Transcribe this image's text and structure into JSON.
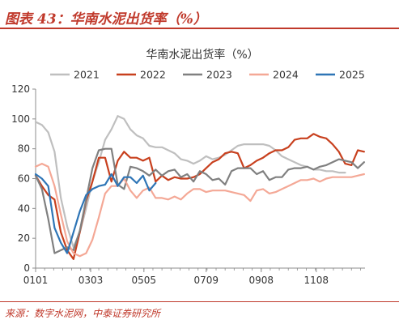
{
  "header": {
    "title": "图表 43：华南水泥出货率（%）",
    "accent_color": "#c0392b"
  },
  "source": {
    "text": "来源：数字水泥网，中泰证券研究所"
  },
  "chart_data": {
    "type": "line",
    "title": "华南水泥出货率（%）",
    "xlabel": "",
    "ylabel": "",
    "ylim": [
      0,
      120
    ],
    "yticks": [
      0,
      20,
      40,
      60,
      80,
      100,
      120
    ],
    "xlim": [
      1,
      366
    ],
    "x_unit": "day of year",
    "x_tick_values": [
      1,
      62,
      121,
      190,
      251,
      312
    ],
    "x_tick_labels": [
      "0101",
      "0303",
      "0505",
      "0709",
      "0908",
      "1108"
    ],
    "grid": false,
    "legend": {
      "position": "top",
      "entries": [
        "2021",
        "2022",
        "2023",
        "2024",
        "2025"
      ]
    },
    "series": [
      {
        "name": "2021",
        "color": "#bfbfbf",
        "x": [
          1,
          8,
          15,
          22,
          29,
          36,
          43,
          50,
          57,
          64,
          71,
          78,
          85,
          92,
          99,
          106,
          113,
          120,
          127,
          134,
          141,
          148,
          155,
          162,
          169,
          176,
          183,
          190,
          197,
          204,
          211,
          218,
          225,
          232,
          239,
          246,
          253,
          260,
          267,
          274,
          281,
          288,
          295,
          302,
          309,
          316,
          323,
          330,
          337,
          344
        ],
        "y": [
          98,
          96,
          91,
          78,
          47,
          28,
          14,
          24,
          40,
          58,
          71,
          86,
          93,
          102,
          100,
          93,
          89,
          87,
          82,
          81,
          81,
          79,
          77,
          73,
          72,
          70,
          72,
          75,
          73,
          74,
          76,
          79,
          82,
          83,
          83,
          83,
          83,
          82,
          79,
          75,
          73,
          71,
          69,
          68,
          66,
          66,
          65,
          65,
          64,
          64
        ]
      },
      {
        "name": "2022",
        "color": "#c8401e",
        "x": [
          1,
          8,
          15,
          22,
          29,
          36,
          43,
          50,
          57,
          64,
          71,
          78,
          85,
          92,
          99,
          106,
          113,
          120,
          127,
          134,
          141,
          148,
          155,
          162,
          169,
          176,
          183,
          190,
          197,
          204,
          211,
          218,
          225,
          232,
          239,
          246,
          253,
          260,
          267,
          274,
          281,
          288,
          295,
          302,
          309,
          316,
          323,
          330,
          337,
          344,
          351,
          358,
          365
        ],
        "y": [
          62,
          55,
          49,
          46,
          24,
          12,
          6,
          24,
          45,
          58,
          74,
          74,
          58,
          72,
          78,
          74,
          74,
          72,
          74,
          58,
          62,
          59,
          61,
          60,
          60,
          61,
          63,
          67,
          71,
          73,
          77,
          78,
          77,
          67,
          69,
          72,
          74,
          77,
          79,
          79,
          81,
          86,
          87,
          87,
          90,
          88,
          87,
          83,
          78,
          70,
          69,
          79,
          78
        ]
      },
      {
        "name": "2023",
        "color": "#808080",
        "x": [
          1,
          8,
          15,
          22,
          29,
          36,
          43,
          50,
          57,
          64,
          71,
          78,
          85,
          92,
          99,
          106,
          113,
          120,
          127,
          134,
          141,
          148,
          155,
          162,
          169,
          176,
          183,
          190,
          197,
          204,
          211,
          218,
          225,
          232,
          239,
          246,
          253,
          260,
          267,
          274,
          281,
          288,
          295,
          302,
          309,
          316,
          323,
          330,
          337,
          344,
          351,
          358,
          365
        ],
        "y": [
          62,
          53,
          33,
          10,
          12,
          14,
          12,
          25,
          46,
          67,
          79,
          80,
          80,
          56,
          53,
          68,
          67,
          65,
          62,
          66,
          62,
          65,
          66,
          61,
          63,
          58,
          65,
          63,
          59,
          60,
          56,
          65,
          67,
          67,
          67,
          63,
          65,
          59,
          61,
          61,
          66,
          67,
          67,
          68,
          66,
          68,
          69,
          71,
          73,
          72,
          71,
          67,
          71
        ]
      },
      {
        "name": "2024",
        "color": "#f4a896",
        "x": [
          1,
          8,
          15,
          22,
          29,
          36,
          43,
          50,
          57,
          64,
          71,
          78,
          85,
          92,
          99,
          106,
          113,
          120,
          127,
          134,
          141,
          148,
          155,
          162,
          169,
          176,
          183,
          190,
          197,
          204,
          211,
          218,
          225,
          232,
          239,
          246,
          253,
          260,
          267,
          274,
          281,
          288,
          295,
          302,
          309,
          316,
          323,
          330,
          337,
          344,
          351,
          358,
          365
        ],
        "y": [
          68,
          70,
          68,
          55,
          36,
          18,
          10,
          8,
          10,
          19,
          34,
          50,
          55,
          55,
          60,
          52,
          47,
          52,
          54,
          47,
          47,
          46,
          48,
          46,
          50,
          53,
          53,
          51,
          52,
          52,
          52,
          51,
          50,
          49,
          45,
          52,
          53,
          50,
          51,
          53,
          55,
          57,
          59,
          59,
          60,
          58,
          60,
          61,
          61,
          61,
          61,
          62,
          63
        ]
      },
      {
        "name": "2025",
        "color": "#2e75b6",
        "x": [
          1,
          8,
          15,
          22,
          29,
          36,
          43,
          50,
          57,
          64,
          71,
          78,
          85,
          92,
          99,
          106,
          113,
          120,
          127,
          134
        ],
        "y": [
          63,
          60,
          55,
          27,
          17,
          10,
          24,
          38,
          49,
          53,
          55,
          56,
          63,
          55,
          61,
          61,
          57,
          62,
          52,
          57
        ]
      }
    ]
  }
}
